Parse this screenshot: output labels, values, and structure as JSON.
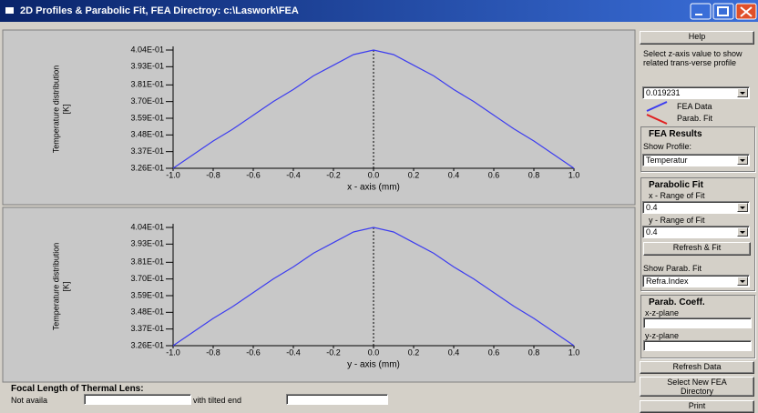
{
  "window": {
    "title": "2D Profiles & Parabolic Fit, FEA Directroy: c:\\Laswork\\FEA"
  },
  "chart_data": [
    {
      "type": "line",
      "ylabel": [
        "Temperature distribution",
        "[K]"
      ],
      "xlabel": "x - axis (mm)",
      "x": [
        -1,
        -0.9,
        -0.8,
        -0.7,
        -0.6,
        -0.5,
        -0.4,
        -0.3,
        -0.2,
        -0.1,
        0,
        0.1,
        0.2,
        0.3,
        0.4,
        0.5,
        0.6,
        0.7,
        0.8,
        0.9,
        1
      ],
      "series": [
        {
          "name": "FEA Data",
          "color": "#3c3cf0",
          "values": [
            0.326,
            0.335,
            0.344,
            0.352,
            0.361,
            0.37,
            0.378,
            0.387,
            0.394,
            0.401,
            0.404,
            0.401,
            0.394,
            0.387,
            0.378,
            0.37,
            0.361,
            0.352,
            0.344,
            0.335,
            0.326
          ]
        }
      ],
      "xlim": [
        -1,
        1
      ],
      "ylim": [
        0.326,
        0.404
      ],
      "xticks": [
        {
          "value": -1,
          "label": "-1.0"
        },
        {
          "value": -0.8,
          "label": "-0.8"
        },
        {
          "value": -0.6,
          "label": "-0.6"
        },
        {
          "value": -0.4,
          "label": "-0.4"
        },
        {
          "value": -0.2,
          "label": "-0.2"
        },
        {
          "value": 0,
          "label": "0.0"
        },
        {
          "value": 0.2,
          "label": "0.2"
        },
        {
          "value": 0.4,
          "label": "0.4"
        },
        {
          "value": 0.6,
          "label": "0.6"
        },
        {
          "value": 0.8,
          "label": "0.8"
        },
        {
          "value": 1,
          "label": "1.0"
        }
      ],
      "yticks": [
        {
          "value": 0.326,
          "label": "3.26E-01"
        },
        {
          "value": 0.337,
          "label": "3.37E-01"
        },
        {
          "value": 0.348,
          "label": "3.48E-01"
        },
        {
          "value": 0.359,
          "label": "3.59E-01"
        },
        {
          "value": 0.37,
          "label": "3.70E-01"
        },
        {
          "value": 0.381,
          "label": "3.81E-01"
        },
        {
          "value": 0.393,
          "label": "3.93E-01"
        },
        {
          "value": 0.404,
          "label": "4.04E-01"
        }
      ]
    },
    {
      "type": "line",
      "ylabel": [
        "Temperature distribution",
        "[K]"
      ],
      "xlabel": "y - axis (mm)",
      "x": [
        -1,
        -0.9,
        -0.8,
        -0.7,
        -0.6,
        -0.5,
        -0.4,
        -0.3,
        -0.2,
        -0.1,
        0,
        0.1,
        0.2,
        0.3,
        0.4,
        0.5,
        0.6,
        0.7,
        0.8,
        0.9,
        1
      ],
      "series": [
        {
          "name": "FEA Data",
          "color": "#3c3cf0",
          "values": [
            0.326,
            0.335,
            0.344,
            0.352,
            0.361,
            0.37,
            0.378,
            0.387,
            0.394,
            0.401,
            0.404,
            0.401,
            0.394,
            0.387,
            0.378,
            0.37,
            0.361,
            0.352,
            0.344,
            0.335,
            0.326
          ]
        }
      ],
      "xlim": [
        -1,
        1
      ],
      "ylim": [
        0.326,
        0.404
      ],
      "xticks": [
        {
          "value": -1,
          "label": "-1.0"
        },
        {
          "value": -0.8,
          "label": "-0.8"
        },
        {
          "value": -0.6,
          "label": "-0.6"
        },
        {
          "value": -0.4,
          "label": "-0.4"
        },
        {
          "value": -0.2,
          "label": "-0.2"
        },
        {
          "value": 0,
          "label": "0.0"
        },
        {
          "value": 0.2,
          "label": "0.2"
        },
        {
          "value": 0.4,
          "label": "0.4"
        },
        {
          "value": 0.6,
          "label": "0.6"
        },
        {
          "value": 0.8,
          "label": "0.8"
        },
        {
          "value": 1,
          "label": "1.0"
        }
      ],
      "yticks": [
        {
          "value": 0.326,
          "label": "3.26E-01"
        },
        {
          "value": 0.337,
          "label": "3.37E-01"
        },
        {
          "value": 0.348,
          "label": "3.48E-01"
        },
        {
          "value": 0.359,
          "label": "3.59E-01"
        },
        {
          "value": 0.37,
          "label": "3.70E-01"
        },
        {
          "value": 0.381,
          "label": "3.81E-01"
        },
        {
          "value": 0.393,
          "label": "3.93E-01"
        },
        {
          "value": 0.404,
          "label": "4.04E-01"
        }
      ]
    }
  ],
  "panel": {
    "help": "Help",
    "select_text": "Select z-axis value to show related trans-verse profile",
    "z_value": "0.019231",
    "legend": [
      {
        "label": "FEA Data",
        "color": "#3c3cf0"
      },
      {
        "label": "Parab. Fit",
        "color": "#e02020"
      }
    ],
    "fea_results": {
      "title": "FEA Results",
      "show_profile": "Show Profile:",
      "profile": "Temperatur"
    },
    "parabolic_fit": {
      "title": "Parabolic Fit",
      "x_range_label": "x - Range of Fit",
      "x_range": "0.4",
      "y_range_label": "y - Range of Fit",
      "y_range": "0.4",
      "refresh_fit": "Refresh & Fit",
      "show_fit_label": "Show Parab. Fit",
      "show_fit": "Refra.Index"
    },
    "parab_coeff": {
      "title": "Parab. Coeff.",
      "xz": "x-z-plane",
      "yz": "y-z-plane"
    },
    "refresh_data": "Refresh Data",
    "select_dir": "Select New FEA Directory",
    "print": "Print"
  },
  "footer": {
    "title": "Focal Length of Thermal Lens:",
    "not_avail": "Not availa",
    "tilted": "vith tilted end"
  }
}
